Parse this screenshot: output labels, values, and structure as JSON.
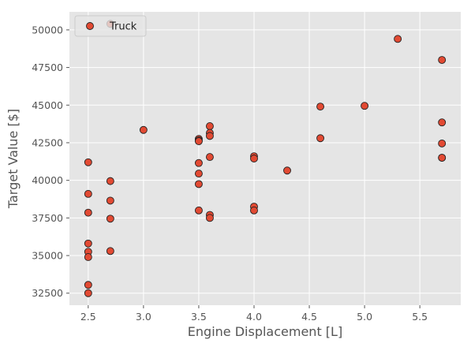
{
  "chart_data": {
    "type": "scatter",
    "title": "",
    "xlabel": "Engine Displacement [L]",
    "ylabel": "Target Value [$]",
    "xlim": [
      2.33,
      5.87
    ],
    "ylim": [
      31700,
      51200
    ],
    "xticks": [
      2.5,
      3.0,
      3.5,
      4.0,
      4.5,
      5.0,
      5.5
    ],
    "xtick_labels": [
      "2.5",
      "3.0",
      "3.5",
      "4.0",
      "4.5",
      "5.0",
      "5.5"
    ],
    "yticks": [
      32500,
      35000,
      37500,
      40000,
      42500,
      45000,
      47500,
      50000
    ],
    "ytick_labels": [
      "32500",
      "35000",
      "37500",
      "40000",
      "42500",
      "45000",
      "47500",
      "50000"
    ],
    "grid": true,
    "background": "#e5e5e5",
    "legend_position": "top-left",
    "series": [
      {
        "name": "Truck",
        "color": "#e24a33",
        "points": [
          [
            2.5,
            41200
          ],
          [
            2.5,
            39100
          ],
          [
            2.5,
            37850
          ],
          [
            2.5,
            35800
          ],
          [
            2.5,
            35250
          ],
          [
            2.5,
            34900
          ],
          [
            2.5,
            33050
          ],
          [
            2.5,
            32500
          ],
          [
            2.7,
            50400
          ],
          [
            2.7,
            39950
          ],
          [
            2.7,
            38650
          ],
          [
            2.7,
            37450
          ],
          [
            2.7,
            35300
          ],
          [
            3.0,
            43350
          ],
          [
            3.5,
            42750
          ],
          [
            3.5,
            42650
          ],
          [
            3.5,
            42600
          ],
          [
            3.5,
            41150
          ],
          [
            3.5,
            40450
          ],
          [
            3.5,
            39750
          ],
          [
            3.5,
            38000
          ],
          [
            3.6,
            43600
          ],
          [
            3.6,
            43150
          ],
          [
            3.6,
            42950
          ],
          [
            3.6,
            41550
          ],
          [
            3.6,
            37700
          ],
          [
            3.6,
            37500
          ],
          [
            4.0,
            41600
          ],
          [
            4.0,
            41450
          ],
          [
            4.0,
            38250
          ],
          [
            4.0,
            38000
          ],
          [
            4.3,
            40650
          ],
          [
            4.6,
            44900
          ],
          [
            4.6,
            42800
          ],
          [
            5.0,
            44950
          ],
          [
            5.3,
            49400
          ],
          [
            5.7,
            48000
          ],
          [
            5.7,
            43850
          ],
          [
            5.7,
            42450
          ],
          [
            5.7,
            41500
          ],
          [
            5.7,
            41500
          ]
        ]
      }
    ]
  }
}
